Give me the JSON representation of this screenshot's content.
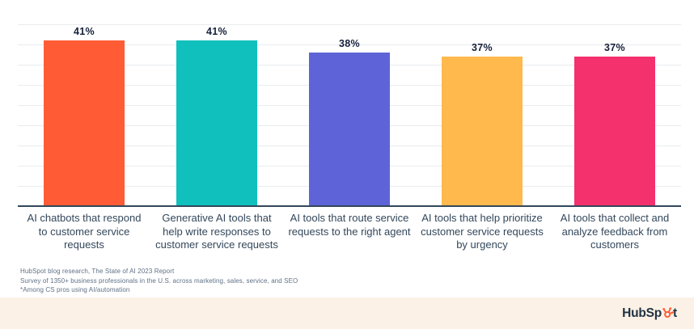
{
  "chart_data": {
    "type": "bar",
    "title": "",
    "categories": [
      "AI chatbots that respond\nto customer service\nrequests",
      "Generative AI tools that\nhelp write responses to\ncustomer service requests",
      "AI tools that route service\nrequests to the right agent",
      "AI tools that help prioritize\ncustomer service requests\nby urgency",
      "AI tools that collect and\nanalyze feedback from\ncustomers"
    ],
    "values": [
      41,
      41,
      38,
      37,
      37
    ],
    "value_labels": [
      "41%",
      "41%",
      "38%",
      "37%",
      "37%"
    ],
    "colors": [
      "#FF5C35",
      "#0FC0BD",
      "#5E64D7",
      "#FFB94D",
      "#F4306D"
    ],
    "xlabel": "",
    "ylabel": "",
    "ylim": [
      0,
      45
    ],
    "gridline_step": 5,
    "grid": true,
    "legend_position": "none"
  },
  "footnotes": [
    "HubSpot blog research, The State of AI 2023 Report",
    "Survey of 1350+ business professionals in the U.S. across marketing, sales, service, and SEO",
    "*Among CS pros using AI/automation"
  ],
  "logo": {
    "prefix": "HubSp",
    "suffix": "t",
    "sprocket_color": "#FF5C35",
    "text_color": "#213343"
  },
  "theme": {
    "background": "#FFFFFF",
    "strip_background": "#FBF1E6",
    "gridline": "#E9EBEE",
    "axis": "#33475B",
    "value_label": "#15203A",
    "category_label": "#33475B",
    "footnote": "#5F7186"
  }
}
